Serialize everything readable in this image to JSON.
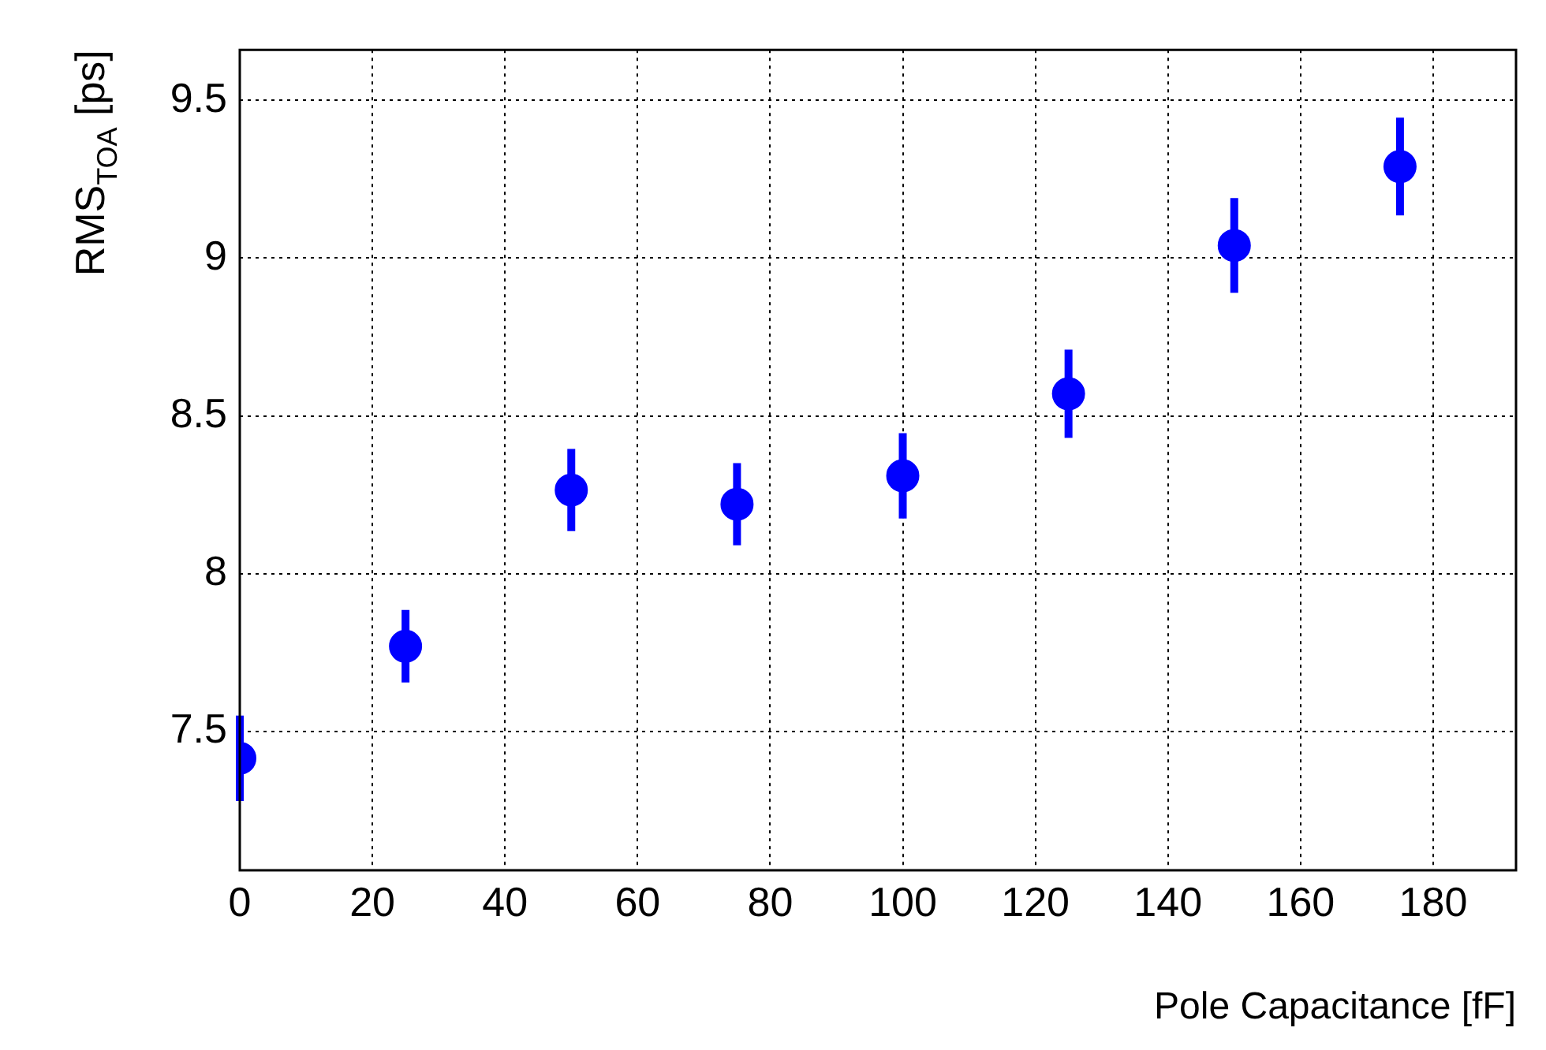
{
  "chart_data": {
    "type": "scatter",
    "xlabel": "Pole Capacitance [fF]",
    "ylabel": "RMS$_{TOA}$ [ps]",
    "x": [
      0,
      25,
      50,
      75,
      100,
      125,
      150,
      175
    ],
    "series": [
      {
        "color": "#0000ff",
        "values": [
          7.415,
          7.77,
          8.265,
          8.22,
          8.31,
          8.57,
          9.04,
          9.29
        ],
        "errors": [
          0.135,
          0.115,
          0.13,
          0.13,
          0.135,
          0.14,
          0.15,
          0.155
        ]
      }
    ],
    "marker": "circle",
    "xlim": [
      0,
      192.5
    ],
    "xticks": [
      0,
      20,
      40,
      60,
      80,
      100,
      120,
      140,
      160,
      180
    ],
    "ylim": [
      7.06,
      9.66
    ],
    "yticks": [
      7.5,
      8,
      8.5,
      9,
      9.5
    ],
    "grid": true,
    "legend": false
  }
}
